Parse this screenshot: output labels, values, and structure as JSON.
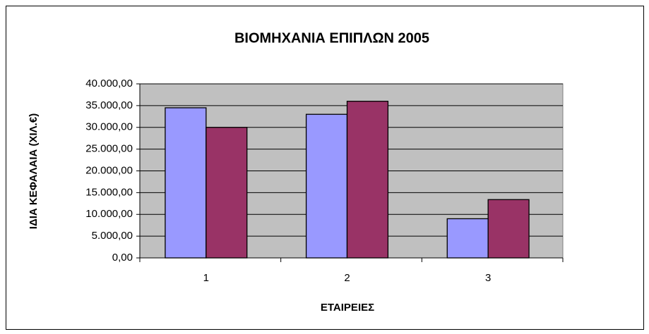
{
  "chart_data": {
    "type": "bar",
    "title": "ΒΙΟΜΗΧΑΝΙΑ ΕΠΙΠΛΩΝ 2005",
    "x_label": "ΕΤΑΙΡΕΙΕΣ",
    "y_label": "ΙΔΙΑ ΚΕΦΑΛΑΙΑ (ΧΙΛ.€)",
    "categories": [
      "1",
      "2",
      "3"
    ],
    "series": [
      {
        "color": "#9999ff",
        "values": [
          34500,
          33000,
          9000
        ]
      },
      {
        "color": "#993366",
        "values": [
          30000,
          36000,
          13400
        ]
      }
    ],
    "ylim": [
      0,
      40000
    ],
    "yticks": [
      {
        "value": 0,
        "label": "0,00"
      },
      {
        "value": 5000,
        "label": "5.000,00"
      },
      {
        "value": 10000,
        "label": "10.000,00"
      },
      {
        "value": 15000,
        "label": "15.000,00"
      },
      {
        "value": 20000,
        "label": "20.000,00"
      },
      {
        "value": 25000,
        "label": "25.000,00"
      },
      {
        "value": 30000,
        "label": "30.000,00"
      },
      {
        "value": 35000,
        "label": "35.000,00"
      },
      {
        "value": 40000,
        "label": "40.000,00"
      }
    ],
    "grid": true
  }
}
